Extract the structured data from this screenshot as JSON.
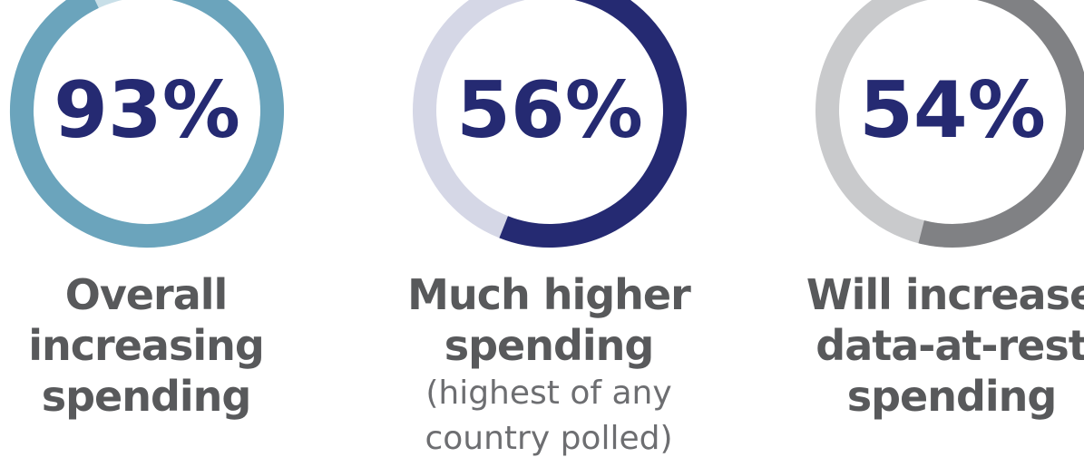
{
  "chart_data": {
    "type": "donut",
    "items": [
      {
        "value": 93,
        "value_label": "93%",
        "label_lines": [
          "Overall",
          "increasing",
          "spending"
        ],
        "note_lines": [],
        "color": "#6ba4bc",
        "track_color": "#c8dfe8"
      },
      {
        "value": 56,
        "value_label": "56%",
        "label_lines": [
          "Much higher",
          "spending"
        ],
        "note_lines": [
          "(highest of any",
          "country polled)"
        ],
        "color": "#252a72",
        "track_color": "#d5d7e6"
      },
      {
        "value": 54,
        "value_label": "54%",
        "label_lines": [
          "Will increase",
          "data-at-rest",
          "spending"
        ],
        "note_lines": [],
        "color": "#808184",
        "track_color": "#c9cacc"
      }
    ]
  }
}
